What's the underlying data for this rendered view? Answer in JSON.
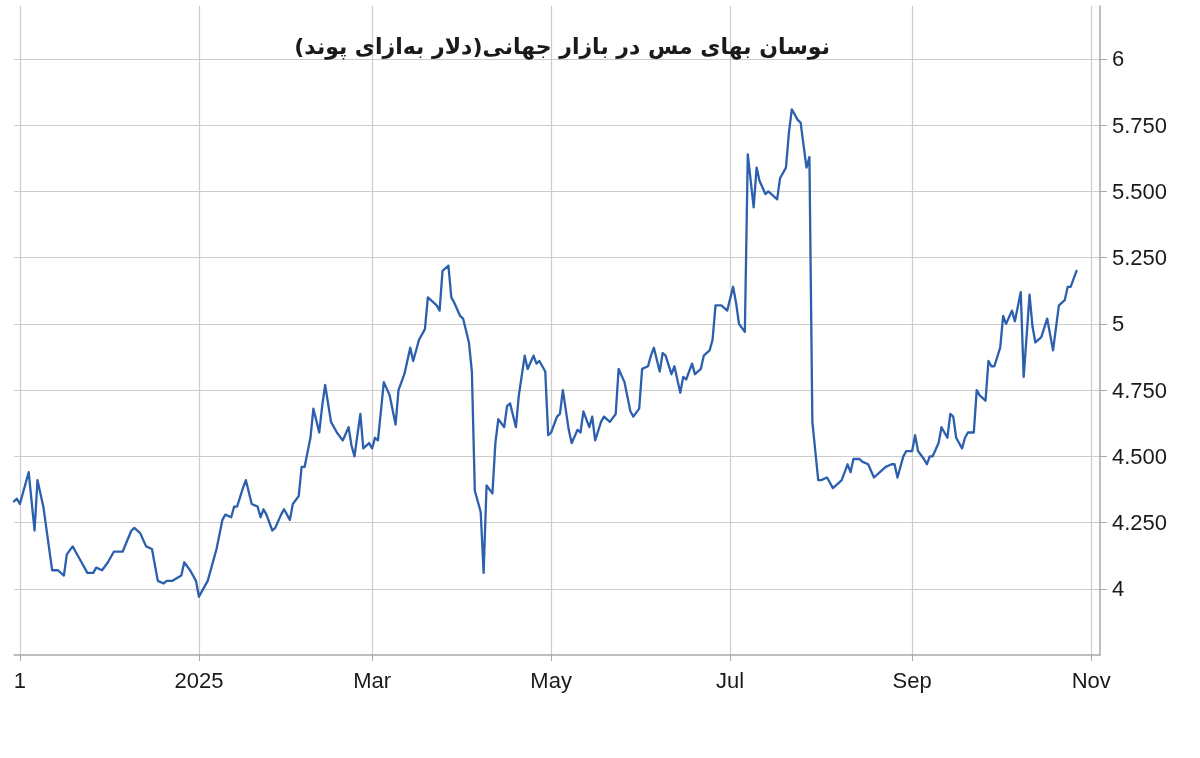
{
  "chart_data": {
    "type": "line",
    "title": "نوسان بهای مس در بازار جهانی(دلار به‌ازای پوند)",
    "x": [
      "2024-10-30",
      "2024-10-31",
      "2024-11-01",
      "2024-11-04",
      "2024-11-06",
      "2024-11-07",
      "2024-11-09",
      "2024-11-10",
      "2024-11-12",
      "2024-11-14",
      "2024-11-16",
      "2024-11-17",
      "2024-11-19",
      "2024-11-20",
      "2024-11-22",
      "2024-11-24",
      "2024-11-26",
      "2024-11-27",
      "2024-11-29",
      "2024-12-01",
      "2024-12-03",
      "2024-12-06",
      "2024-12-09",
      "2024-12-10",
      "2024-12-12",
      "2024-12-14",
      "2024-12-16",
      "2024-12-18",
      "2024-12-20",
      "2024-12-21",
      "2024-12-23",
      "2024-12-26",
      "2024-12-27",
      "2024-12-29",
      "2024-12-31",
      "2025-01-01",
      "2025-01-02",
      "2025-01-04",
      "2025-01-06",
      "2025-01-07",
      "2025-01-09",
      "2025-01-10",
      "2025-01-12",
      "2025-01-13",
      "2025-01-14",
      "2025-01-16",
      "2025-01-17",
      "2025-01-19",
      "2025-01-21",
      "2025-01-22",
      "2025-01-23",
      "2025-01-24",
      "2025-01-26",
      "2025-01-27",
      "2025-01-29",
      "2025-01-30",
      "2025-02-01",
      "2025-02-02",
      "2025-02-04",
      "2025-02-05",
      "2025-02-06",
      "2025-02-08",
      "2025-02-09",
      "2025-02-11",
      "2025-02-12",
      "2025-02-13",
      "2025-02-15",
      "2025-02-17",
      "2025-02-19",
      "2025-02-21",
      "2025-02-22",
      "2025-02-23",
      "2025-02-25",
      "2025-02-26",
      "2025-02-28",
      "2025-03-01",
      "2025-03-02",
      "2025-03-03",
      "2025-03-05",
      "2025-03-07",
      "2025-03-09",
      "2025-03-10",
      "2025-03-12",
      "2025-03-14",
      "2025-03-15",
      "2025-03-17",
      "2025-03-19",
      "2025-03-20",
      "2025-03-22",
      "2025-03-23",
      "2025-03-24",
      "2025-03-25",
      "2025-03-27",
      "2025-03-28",
      "2025-03-29",
      "2025-03-31",
      "2025-04-01",
      "2025-04-03",
      "2025-04-04",
      "2025-04-05",
      "2025-04-07",
      "2025-04-08",
      "2025-04-09",
      "2025-04-11",
      "2025-04-12",
      "2025-04-13",
      "2025-04-15",
      "2025-04-16",
      "2025-04-17",
      "2025-04-19",
      "2025-04-20",
      "2025-04-22",
      "2025-04-23",
      "2025-04-25",
      "2025-04-26",
      "2025-04-27",
      "2025-04-29",
      "2025-04-30",
      "2025-05-01",
      "2025-05-03",
      "2025-05-04",
      "2025-05-05",
      "2025-05-07",
      "2025-05-08",
      "2025-05-10",
      "2025-05-11",
      "2025-05-12",
      "2025-05-14",
      "2025-05-15",
      "2025-05-16",
      "2025-05-18",
      "2025-05-19",
      "2025-05-21",
      "2025-05-23",
      "2025-05-24",
      "2025-05-26",
      "2025-05-28",
      "2025-05-29",
      "2025-05-31",
      "2025-06-01",
      "2025-06-03",
      "2025-06-04",
      "2025-06-05",
      "2025-06-07",
      "2025-06-08",
      "2025-06-09",
      "2025-06-11",
      "2025-06-12",
      "2025-06-14",
      "2025-06-15",
      "2025-06-16",
      "2025-06-18",
      "2025-06-19",
      "2025-06-21",
      "2025-06-22",
      "2025-06-24",
      "2025-06-25",
      "2025-06-26",
      "2025-06-28",
      "2025-06-30",
      "2025-07-02",
      "2025-07-03",
      "2025-07-04",
      "2025-07-06",
      "2025-07-07",
      "2025-07-09",
      "2025-07-10",
      "2025-07-11",
      "2025-07-13",
      "2025-07-14",
      "2025-07-16",
      "2025-07-17",
      "2025-07-18",
      "2025-07-20",
      "2025-07-21",
      "2025-07-22",
      "2025-07-24",
      "2025-07-25",
      "2025-07-27",
      "2025-07-28",
      "2025-07-29",
      "2025-07-31",
      "2025-08-01",
      "2025-08-03",
      "2025-08-04",
      "2025-08-05",
      "2025-08-07",
      "2025-08-08",
      "2025-08-10",
      "2025-08-11",
      "2025-08-12",
      "2025-08-14",
      "2025-08-15",
      "2025-08-17",
      "2025-08-19",
      "2025-08-21",
      "2025-08-23",
      "2025-08-25",
      "2025-08-26",
      "2025-08-27",
      "2025-08-29",
      "2025-08-30",
      "2025-09-01",
      "2025-09-02",
      "2025-09-03",
      "2025-09-05",
      "2025-09-06",
      "2025-09-07",
      "2025-09-08",
      "2025-09-10",
      "2025-09-11",
      "2025-09-13",
      "2025-09-14",
      "2025-09-15",
      "2025-09-16",
      "2025-09-18",
      "2025-09-19",
      "2025-09-20",
      "2025-09-22",
      "2025-09-23",
      "2025-09-24",
      "2025-09-26",
      "2025-09-27",
      "2025-09-28",
      "2025-09-29",
      "2025-10-01",
      "2025-10-02",
      "2025-10-03",
      "2025-10-05",
      "2025-10-06",
      "2025-10-08",
      "2025-10-09",
      "2025-10-11",
      "2025-10-12",
      "2025-10-13",
      "2025-10-15",
      "2025-10-17",
      "2025-10-19",
      "2025-10-21",
      "2025-10-23",
      "2025-10-24",
      "2025-10-25",
      "2025-10-27"
    ],
    "values": [
      4.33,
      4.34,
      4.32,
      4.44,
      4.22,
      4.41,
      4.31,
      4.23,
      4.07,
      4.07,
      4.05,
      4.13,
      4.16,
      4.14,
      4.1,
      4.06,
      4.06,
      4.08,
      4.07,
      4.1,
      4.14,
      4.14,
      4.22,
      4.23,
      4.21,
      4.16,
      4.15,
      4.03,
      4.02,
      4.03,
      4.03,
      4.05,
      4.1,
      4.07,
      4.03,
      3.97,
      3.99,
      4.03,
      4.11,
      4.15,
      4.26,
      4.28,
      4.27,
      4.31,
      4.31,
      4.38,
      4.41,
      4.32,
      4.31,
      4.27,
      4.3,
      4.28,
      4.22,
      4.23,
      4.28,
      4.3,
      4.26,
      4.32,
      4.35,
      4.46,
      4.46,
      4.57,
      4.68,
      4.59,
      4.69,
      4.77,
      4.63,
      4.59,
      4.56,
      4.61,
      4.54,
      4.5,
      4.66,
      4.53,
      4.55,
      4.53,
      4.57,
      4.56,
      4.78,
      4.73,
      4.62,
      4.75,
      4.81,
      4.91,
      4.86,
      4.94,
      4.98,
      5.1,
      5.08,
      5.07,
      5.05,
      5.2,
      5.22,
      5.1,
      5.08,
      5.03,
      5.02,
      4.93,
      4.82,
      4.37,
      4.29,
      4.06,
      4.39,
      4.36,
      4.55,
      4.64,
      4.61,
      4.69,
      4.7,
      4.61,
      4.73,
      4.88,
      4.83,
      4.88,
      4.85,
      4.86,
      4.82,
      4.58,
      4.59,
      4.65,
      4.66,
      4.75,
      4.6,
      4.55,
      4.6,
      4.59,
      4.67,
      4.61,
      4.65,
      4.56,
      4.63,
      4.65,
      4.63,
      4.66,
      4.83,
      4.78,
      4.67,
      4.65,
      4.68,
      4.83,
      4.84,
      4.88,
      4.91,
      4.82,
      4.89,
      4.88,
      4.81,
      4.84,
      4.74,
      4.8,
      4.79,
      4.85,
      4.81,
      4.83,
      4.88,
      4.9,
      4.94,
      5.07,
      5.07,
      5.05,
      5.14,
      5.08,
      5.0,
      4.97,
      5.64,
      5.44,
      5.59,
      5.54,
      5.49,
      5.5,
      5.48,
      5.47,
      5.55,
      5.59,
      5.72,
      5.81,
      5.77,
      5.76,
      5.59,
      5.63,
      4.63,
      4.41,
      4.41,
      4.42,
      4.4,
      4.38,
      4.4,
      4.41,
      4.47,
      4.44,
      4.49,
      4.49,
      4.48,
      4.47,
      4.42,
      4.44,
      4.46,
      4.47,
      4.47,
      4.42,
      4.5,
      4.52,
      4.52,
      4.58,
      4.52,
      4.49,
      4.47,
      4.5,
      4.5,
      4.55,
      4.61,
      4.57,
      4.66,
      4.65,
      4.57,
      4.53,
      4.57,
      4.59,
      4.59,
      4.75,
      4.73,
      4.71,
      4.86,
      4.84,
      4.84,
      4.91,
      5.03,
      5.0,
      5.05,
      5.01,
      5.12,
      4.8,
      5.11,
      4.99,
      4.93,
      4.95,
      5.02,
      4.9,
      5.07,
      5.09,
      5.14,
      5.14,
      5.2
    ],
    "color": "#2c5fad",
    "line_style": "solid",
    "xlim": [
      "2024-10-30",
      "2025-11-04"
    ],
    "xticks": [
      {
        "value": "2024-11-01",
        "label": "1"
      },
      {
        "value": "2025-01-01",
        "label": "2025"
      },
      {
        "value": "2025-03-01",
        "label": "Mar"
      },
      {
        "value": "2025-05-01",
        "label": "May"
      },
      {
        "value": "2025-07-01",
        "label": "Jul"
      },
      {
        "value": "2025-09-01",
        "label": "Sep"
      },
      {
        "value": "2025-11-01",
        "label": "Nov"
      }
    ],
    "ylim": [
      3.75,
      6.2
    ],
    "yticks": [
      4,
      {
        "value": 4.25,
        "label": "4.250"
      },
      {
        "value": 4.5,
        "label": "4.500"
      },
      {
        "value": 4.75,
        "label": "4.750"
      },
      5,
      {
        "value": 5.25,
        "label": "5.250"
      },
      {
        "value": 5.5,
        "label": "5.500"
      },
      {
        "value": 5.75,
        "label": "5.750"
      },
      6
    ],
    "grid": true
  }
}
